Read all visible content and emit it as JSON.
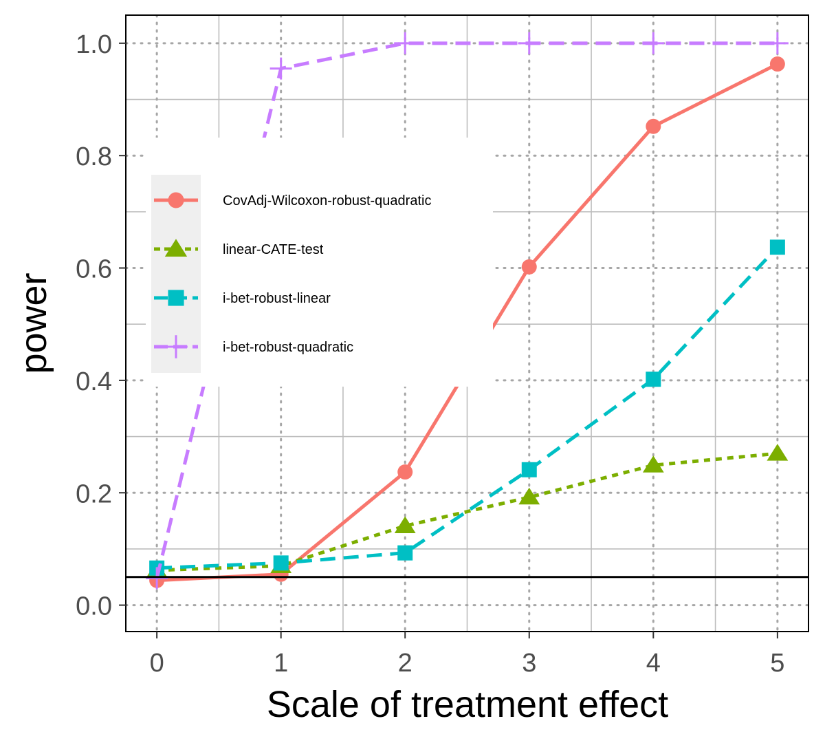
{
  "chart_data": {
    "type": "line",
    "title": "",
    "xlabel": "Scale of treatment effect",
    "ylabel": "power",
    "x": [
      0,
      1,
      2,
      3,
      4,
      5
    ],
    "x_ticks": [
      "0",
      "1",
      "2",
      "3",
      "4",
      "5"
    ],
    "y_ticks": [
      "0.0",
      "0.2",
      "0.4",
      "0.6",
      "0.8",
      "1.0"
    ],
    "xlim": [
      -0.25,
      5.25
    ],
    "ylim": [
      -0.047,
      1.05
    ],
    "grid": true,
    "reference_line": 0.05,
    "legend_position": "inside-left",
    "series": [
      {
        "name": "CovAdj-Wilcoxon-robust-quadratic",
        "values": [
          0.044,
          0.055,
          0.237,
          0.602,
          0.852,
          0.963
        ],
        "color": "#F8766D",
        "dash": "solid",
        "marker": "circle"
      },
      {
        "name": "linear-CATE-test",
        "values": [
          0.062,
          0.07,
          0.141,
          0.192,
          0.249,
          0.27
        ],
        "color": "#7CAE00",
        "dash": "dotted",
        "marker": "triangle"
      },
      {
        "name": "i-bet-robust-linear",
        "values": [
          0.066,
          0.075,
          0.093,
          0.241,
          0.402,
          0.637
        ],
        "color": "#00BFC4",
        "dash": "dashed",
        "marker": "square"
      },
      {
        "name": "i-bet-robust-quadratic",
        "values": [
          0.048,
          0.955,
          1.0,
          1.0,
          1.0,
          1.0
        ],
        "color": "#C77CFF",
        "dash": "dashed",
        "marker": "plus"
      }
    ]
  }
}
